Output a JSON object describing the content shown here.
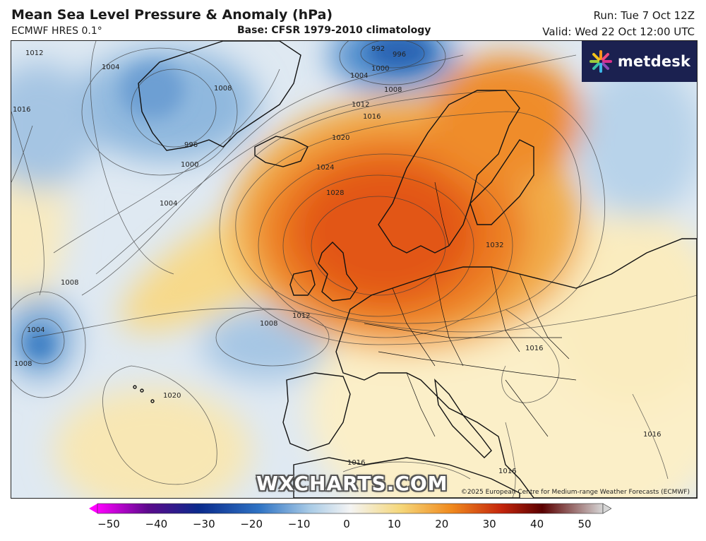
{
  "header": {
    "title": "Mean Sea Level Pressure & Anomaly (hPa)",
    "model": "ECMWF HRES 0.1°",
    "base": "Base: CFSR 1979-2010 climatology",
    "run": "Run: Tue 7 Oct 12Z",
    "valid": "Valid: Wed 22 Oct 12:00 UTC"
  },
  "logo": {
    "text": "metdesk",
    "icon": "metdesk-burst-icon"
  },
  "watermark": "WXCHARTS.COM",
  "copyright": "©2025 European Centre for Medium-range Weather Forecasts (ECMWF)",
  "isobar_labels": {
    "l992": "992",
    "l996a": "996",
    "l1000": "1000",
    "l1004a": "1004",
    "l1008a": "1008",
    "l1012a": "1012",
    "l1016a": "1016",
    "l1020a": "1020",
    "l1024": "1024",
    "l1028": "1028",
    "l1032": "1032",
    "l1004b": "1004",
    "l1008b": "1008",
    "l1012b": "1012",
    "l1008c": "1008",
    "l1004c": "1004",
    "l1008d": "1008",
    "l1020b": "1020",
    "l1016b": "1016",
    "l1016c": "1016",
    "l1016d": "1016",
    "l996b": "996",
    "l1000b": "1000",
    "l1008e": "1008",
    "l1004d": "1004",
    "l1012c": "1012",
    "l1016e": "1016",
    "l1016f": "1016"
  },
  "colorbar": {
    "ticks": [
      "−50",
      "−40",
      "−30",
      "−20",
      "−10",
      "0",
      "10",
      "20",
      "30",
      "40",
      "50"
    ],
    "colors": {
      "min": "#ff00ff",
      "purple": "#5b0a8c",
      "deep_blue": "#0a2a8c",
      "blue": "#2f73c4",
      "light_blue": "#a9cbe6",
      "zero": "#f4f4f4",
      "yellow": "#f5d77a",
      "orange": "#f08a1e",
      "red": "#c4250c",
      "dark_red": "#5a0000",
      "max": "#d6d6d6"
    }
  }
}
